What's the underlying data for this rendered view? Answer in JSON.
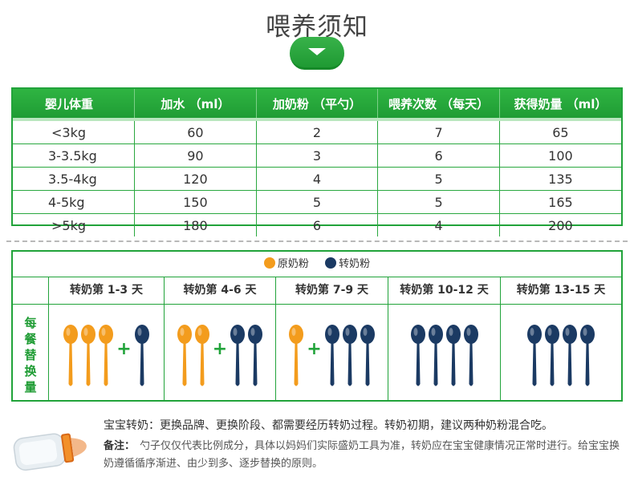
{
  "title": "喂养须知",
  "feeding_table": {
    "headers": [
      "婴儿体重",
      "加水 （ml）",
      "加奶粉 （平勺）",
      "喂养次数 （每天）",
      "获得奶量 （ml）"
    ],
    "rows": [
      [
        "<3kg",
        "60",
        "2",
        "7",
        "65"
      ],
      [
        "3-3.5kg",
        "90",
        "3",
        "6",
        "100"
      ],
      [
        "3.5-4kg",
        "120",
        "4",
        "5",
        "135"
      ],
      [
        "4-5kg",
        "150",
        "5",
        "5",
        "165"
      ],
      [
        ">5kg",
        "180",
        "6",
        "4",
        "200"
      ]
    ]
  },
  "transition": {
    "legend": {
      "original": "原奶粉",
      "new": "转奶粉"
    },
    "colors": {
      "original": "#f39c1d",
      "new": "#1b3a63",
      "accent": "#21a33a"
    },
    "side_label": "每餐替换量",
    "stages": [
      {
        "label": "转奶第 1-3 天",
        "original": 3,
        "new": 1
      },
      {
        "label": "转奶第 4-6 天",
        "original": 2,
        "new": 2
      },
      {
        "label": "转奶第 7-9 天",
        "original": 1,
        "new": 3
      },
      {
        "label": "转奶第 10-12 天",
        "original": 0,
        "new": 4
      },
      {
        "label": "转奶第 13-15 天",
        "original": 0,
        "new": 4
      }
    ]
  },
  "notes": {
    "line1": "宝宝转奶：更换品牌、更换阶段、都需要经历转奶过程。转奶初期，建议两种奶粉混合吃。",
    "label": "备注：",
    "line2": "勺子仅仅代表比例成分，具体以妈妈们实际盛奶工具为准，转奶应在宝宝健康情况正常时进行。给宝宝换奶遵循循序渐进、由少到多、逐步替换的原则。"
  }
}
